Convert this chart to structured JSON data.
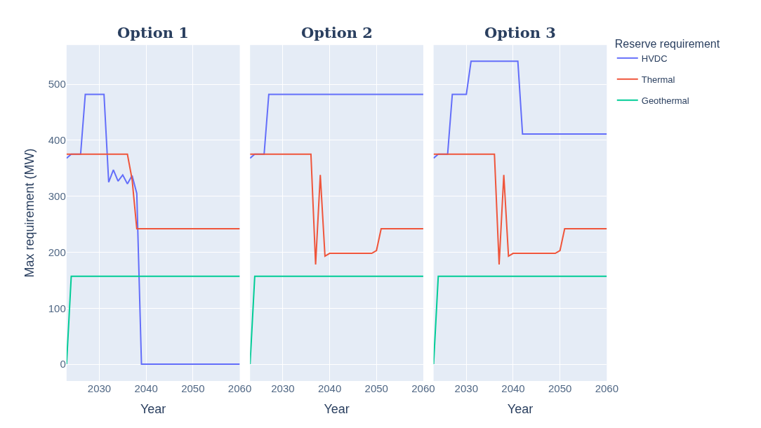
{
  "chart_data": [
    {
      "type": "line",
      "title": "Option 1",
      "xlabel": "Year",
      "ylabel": "Max requirement (MW)",
      "xlim": [
        2023,
        2060
      ],
      "xticks": [
        2030,
        2040,
        2050,
        2060
      ],
      "ylim": [
        -30,
        570
      ],
      "yticks": [
        0,
        100,
        200,
        300,
        400,
        500
      ],
      "grid": true,
      "legend": "right",
      "legend_title": "Reserve requirement",
      "x": [
        2023,
        2024,
        2025,
        2026,
        2027,
        2028,
        2029,
        2030,
        2031,
        2032,
        2033,
        2034,
        2035,
        2036,
        2037,
        2038,
        2039,
        2040,
        2041,
        2042,
        2043,
        2044,
        2045,
        2046,
        2047,
        2048,
        2049,
        2050,
        2051,
        2052,
        2053,
        2054,
        2055,
        2056,
        2057,
        2058,
        2059,
        2060
      ],
      "series": [
        {
          "name": "HVDC",
          "color": "#636efa",
          "values": [
            368,
            375,
            375,
            375,
            482,
            482,
            482,
            482,
            482,
            325,
            347,
            327,
            338,
            322,
            337,
            305,
            0,
            0,
            0,
            0,
            0,
            0,
            0,
            0,
            0,
            0,
            0,
            0,
            0,
            0,
            0,
            0,
            0,
            0,
            0,
            0,
            0,
            0
          ]
        },
        {
          "name": "Thermal",
          "color": "#ef553b",
          "values": [
            375,
            375,
            375,
            375,
            375,
            375,
            375,
            375,
            375,
            375,
            375,
            375,
            375,
            375,
            330,
            242,
            242,
            242,
            242,
            242,
            242,
            242,
            242,
            242,
            242,
            242,
            242,
            242,
            242,
            242,
            242,
            242,
            242,
            242,
            242,
            242,
            242,
            242
          ]
        },
        {
          "name": "Geothermal",
          "color": "#00cc96",
          "values": [
            0,
            157,
            157,
            157,
            157,
            157,
            157,
            157,
            157,
            157,
            157,
            157,
            157,
            157,
            157,
            157,
            157,
            157,
            157,
            157,
            157,
            157,
            157,
            157,
            157,
            157,
            157,
            157,
            157,
            157,
            157,
            157,
            157,
            157,
            157,
            157,
            157,
            157
          ]
        }
      ]
    },
    {
      "type": "line",
      "title": "Option 2",
      "xlabel": "Year",
      "xlim": [
        2023,
        2060
      ],
      "xticks": [
        2030,
        2040,
        2050,
        2060
      ],
      "ylim": [
        -30,
        570
      ],
      "yticks": [
        0,
        100,
        200,
        300,
        400,
        500
      ],
      "grid": true,
      "tick_labels": "x",
      "x": [
        2023,
        2024,
        2025,
        2026,
        2027,
        2028,
        2029,
        2030,
        2031,
        2032,
        2033,
        2034,
        2035,
        2036,
        2037,
        2038,
        2039,
        2040,
        2041,
        2042,
        2043,
        2044,
        2045,
        2046,
        2047,
        2048,
        2049,
        2050,
        2051,
        2052,
        2053,
        2054,
        2055,
        2056,
        2057,
        2058,
        2059,
        2060
      ],
      "series": [
        {
          "color": "#636efa",
          "values": [
            368,
            375,
            375,
            375,
            482,
            482,
            482,
            482,
            482,
            482,
            482,
            482,
            482,
            482,
            482,
            482,
            482,
            482,
            482,
            482,
            482,
            482,
            482,
            482,
            482,
            482,
            482,
            482,
            482,
            482,
            482,
            482,
            482,
            482,
            482,
            482,
            482,
            482
          ]
        },
        {
          "color": "#ef553b",
          "values": [
            375,
            375,
            375,
            375,
            375,
            375,
            375,
            375,
            375,
            375,
            375,
            375,
            375,
            375,
            178,
            338,
            193,
            198,
            198,
            198,
            198,
            198,
            198,
            198,
            198,
            198,
            198,
            203,
            242,
            242,
            242,
            242,
            242,
            242,
            242,
            242,
            242,
            242
          ]
        },
        {
          "color": "#00cc96",
          "values": [
            0,
            157,
            157,
            157,
            157,
            157,
            157,
            157,
            157,
            157,
            157,
            157,
            157,
            157,
            157,
            157,
            157,
            157,
            157,
            157,
            157,
            157,
            157,
            157,
            157,
            157,
            157,
            157,
            157,
            157,
            157,
            157,
            157,
            157,
            157,
            157,
            157,
            157
          ]
        }
      ]
    },
    {
      "type": "line",
      "title": "Option 3",
      "xlabel": "Year",
      "xlim": [
        2023,
        2060
      ],
      "xticks": [
        2030,
        2040,
        2050,
        2060
      ],
      "ylim": [
        -30,
        570
      ],
      "yticks": [
        0,
        100,
        200,
        300,
        400,
        500
      ],
      "grid": true,
      "tick_labels": "x",
      "x": [
        2023,
        2024,
        2025,
        2026,
        2027,
        2028,
        2029,
        2030,
        2031,
        2032,
        2033,
        2034,
        2035,
        2036,
        2037,
        2038,
        2039,
        2040,
        2041,
        2042,
        2043,
        2044,
        2045,
        2046,
        2047,
        2048,
        2049,
        2050,
        2051,
        2052,
        2053,
        2054,
        2055,
        2056,
        2057,
        2058,
        2059,
        2060
      ],
      "series": [
        {
          "color": "#636efa",
          "values": [
            368,
            375,
            375,
            375,
            482,
            482,
            482,
            482,
            541,
            541,
            541,
            541,
            541,
            541,
            541,
            541,
            541,
            541,
            541,
            411,
            411,
            411,
            411,
            411,
            411,
            411,
            411,
            411,
            411,
            411,
            411,
            411,
            411,
            411,
            411,
            411,
            411,
            411
          ]
        },
        {
          "color": "#ef553b",
          "values": [
            375,
            375,
            375,
            375,
            375,
            375,
            375,
            375,
            375,
            375,
            375,
            375,
            375,
            375,
            178,
            338,
            193,
            198,
            198,
            198,
            198,
            198,
            198,
            198,
            198,
            198,
            198,
            203,
            242,
            242,
            242,
            242,
            242,
            242,
            242,
            242,
            242,
            242
          ]
        },
        {
          "color": "#00cc96",
          "values": [
            0,
            157,
            157,
            157,
            157,
            157,
            157,
            157,
            157,
            157,
            157,
            157,
            157,
            157,
            157,
            157,
            157,
            157,
            157,
            157,
            157,
            157,
            157,
            157,
            157,
            157,
            157,
            157,
            157,
            157,
            157,
            157,
            157,
            157,
            157,
            157,
            157,
            157
          ]
        }
      ]
    }
  ]
}
